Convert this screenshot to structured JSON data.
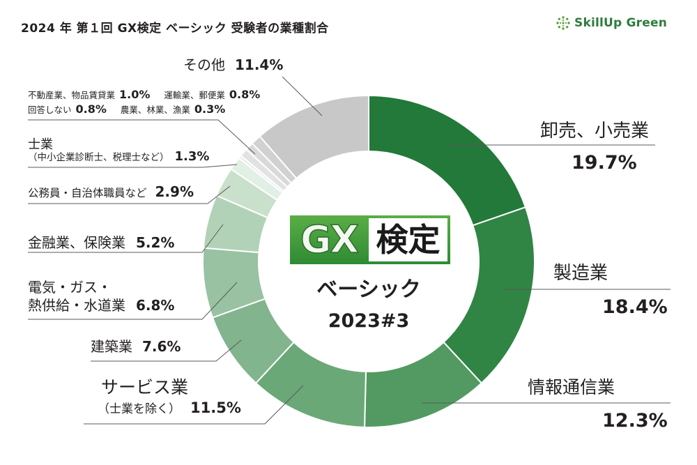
{
  "brand": {
    "name": "SkillUp Green",
    "color": "#2e7d3b",
    "icon": "sparkle-dots-icon"
  },
  "center": {
    "logo": {
      "left_text": "GX",
      "right_text": "検定"
    },
    "lines": [
      "ベーシック",
      "2023#3"
    ]
  },
  "chart_data": {
    "type": "pie",
    "title": "2024 年 第１回 GX検定 ベーシック 受験者の業種割合",
    "slices": [
      {
        "label": [
          "卸売、小売業"
        ],
        "value": 19.7,
        "value_label": "19.7%",
        "color": "#22793a"
      },
      {
        "label": [
          "製造業"
        ],
        "value": 18.4,
        "value_label": "18.4%",
        "color": "#308545"
      },
      {
        "label": [
          "情報通信業"
        ],
        "value": 12.3,
        "value_label": "12.3%",
        "color": "#529a62"
      },
      {
        "label": [
          "サービス業",
          "（士業を除く）"
        ],
        "value": 11.5,
        "value_label": "11.5%",
        "color": "#6ba878"
      },
      {
        "label": [
          "建築業"
        ],
        "value": 7.6,
        "value_label": "7.6%",
        "color": "#82b48d"
      },
      {
        "label": [
          "電気・ガス・",
          "熱供給・水道業"
        ],
        "value": 6.8,
        "value_label": "6.8%",
        "color": "#98c2a2"
      },
      {
        "label": [
          "金融業、保険業"
        ],
        "value": 5.2,
        "value_label": "5.2%",
        "color": "#b1d2b7"
      },
      {
        "label": [
          "公務員・自治体職員など"
        ],
        "value": 2.9,
        "value_label": "2.9%",
        "color": "#c9e0cd"
      },
      {
        "label": [
          "士業",
          "（中小企業診断士、税理士など）"
        ],
        "value": 1.3,
        "value_label": "1.3%",
        "color": "#e2efe4"
      },
      {
        "label": [
          "農業、林業、漁業"
        ],
        "value": 0.3,
        "value_label": "0.3%",
        "color": "#ececec"
      },
      {
        "label": [
          "回答しない"
        ],
        "value": 0.8,
        "value_label": "0.8%",
        "color": "#e2e2e2"
      },
      {
        "label": [
          "運輸業、郵便業"
        ],
        "value": 0.8,
        "value_label": "0.8%",
        "color": "#d9d9d9"
      },
      {
        "label": [
          "不動産業、物品賃貸業"
        ],
        "value": 1.0,
        "value_label": "1.0%",
        "color": "#d1d1d1"
      },
      {
        "label": [
          "その他"
        ],
        "value": 11.4,
        "value_label": "11.4%",
        "color": "#c8c8c8"
      }
    ]
  }
}
